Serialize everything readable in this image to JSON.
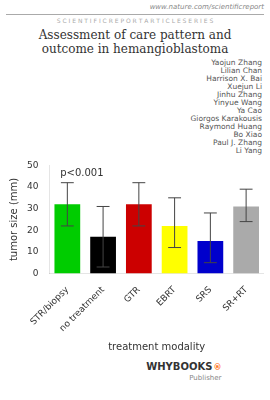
{
  "chart_data": {
    "type": "bar",
    "title": "Assessment of care pattern and\noutcome in hemangioblastoma",
    "header": [
      "www.nature.com/scientificreport",
      "S C I E N T I F I C R E P O R T A R T I C L E S E R I E S"
    ],
    "authors": [
      "Yaojun Zhang",
      "Lilian Chan",
      "Harrison X. Bai",
      "Xuejun Li",
      "Jinhu Zhang",
      "Yinyue Wang",
      "Ya Cao",
      "Giorgos Karakousis",
      "Raymond Huang",
      "Bo Xiao",
      "Paul J. Zhang",
      "Li Yang"
    ],
    "categories": [
      "STR/biopsy",
      "no treatment",
      "GTR",
      "EBRT",
      "SRS",
      "SR+RT"
    ],
    "values": [
      32,
      17,
      32,
      22,
      15,
      31
    ],
    "errors_low": [
      10,
      14,
      10,
      10,
      10,
      7
    ],
    "errors_high": [
      10,
      14,
      10,
      13,
      13,
      8
    ],
    "colors": [
      "#00cc00",
      "#000000",
      "#cc0000",
      "#ffff00",
      "#0000cc",
      "#aaaaaa"
    ],
    "xlabel": "treatment modality",
    "ylabel": "tumor size (mm)",
    "ylim": [
      0,
      50
    ],
    "yticks": [
      0,
      10,
      20,
      30,
      40,
      50
    ],
    "annotations": [
      "p<0.001"
    ],
    "footer": [
      "WHYBOOKS",
      "®",
      "Publisher"
    ],
    "grid": false
  }
}
